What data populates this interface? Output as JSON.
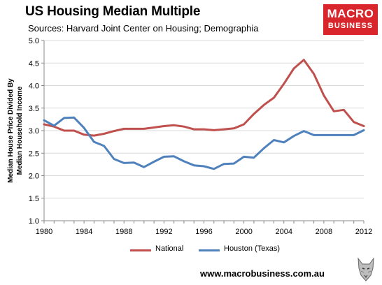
{
  "title": "US Housing Median Multiple",
  "subtitle": "Sources: Harvard Joint Center on Housing; Demographia",
  "logo": {
    "line1": "MACRO",
    "line2": "BUSINESS",
    "color": "#d9262d"
  },
  "website": "www.macrobusiness.com.au",
  "chart_data": {
    "type": "line",
    "title": "US Housing Median Multiple",
    "xlabel": "",
    "ylabel": "Median House Price Divided By\nMedian Household Income",
    "xlim": [
      1980,
      2012
    ],
    "ylim": [
      1.0,
      5.0
    ],
    "x_ticks": [
      "1980",
      "1984",
      "1988",
      "1992",
      "1996",
      "2000",
      "2004",
      "2008",
      "2012"
    ],
    "y_ticks": [
      "1.0",
      "1.5",
      "2.0",
      "2.5",
      "3.0",
      "3.5",
      "4.0",
      "4.5",
      "5.0"
    ],
    "grid": true,
    "legend": "bottom",
    "x": [
      1980,
      1981,
      1982,
      1983,
      1984,
      1985,
      1986,
      1987,
      1988,
      1989,
      1990,
      1991,
      1992,
      1993,
      1994,
      1995,
      1996,
      1997,
      1998,
      1999,
      2000,
      2001,
      2002,
      2003,
      2004,
      2005,
      2006,
      2007,
      2008,
      2009,
      2010,
      2011,
      2012
    ],
    "series": [
      {
        "name": "National",
        "color": "#c0504d",
        "values": [
          3.14,
          3.09,
          3.0,
          3.0,
          2.91,
          2.89,
          2.93,
          2.99,
          3.04,
          3.04,
          3.04,
          3.07,
          3.1,
          3.12,
          3.09,
          3.03,
          3.03,
          3.01,
          3.03,
          3.05,
          3.14,
          3.37,
          3.57,
          3.73,
          4.04,
          4.38,
          4.57,
          4.26,
          3.78,
          3.43,
          3.46,
          3.19,
          3.1
        ]
      },
      {
        "name": "Houston (Texas)",
        "color": "#4f81bd",
        "values": [
          3.23,
          3.11,
          3.28,
          3.29,
          3.06,
          2.75,
          2.66,
          2.37,
          2.28,
          2.29,
          2.19,
          2.31,
          2.42,
          2.43,
          2.32,
          2.23,
          2.21,
          2.15,
          2.26,
          2.27,
          2.42,
          2.4,
          2.61,
          2.79,
          2.74,
          2.88,
          2.99,
          2.9,
          2.9,
          2.9,
          2.9,
          2.9,
          3.01
        ]
      }
    ]
  }
}
